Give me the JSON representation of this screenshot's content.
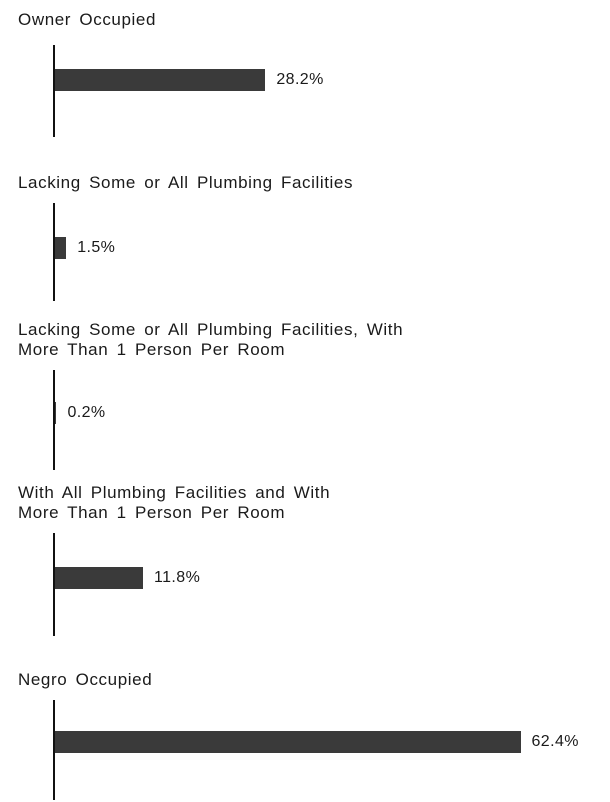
{
  "chart_data": {
    "type": "bar",
    "categories": [
      "Owner Occupied",
      "Lacking Some or All Plumbing Facilities",
      "Lacking Some or All Plumbing Facilities, With\nMore Than 1 Person Per Room",
      "With All Plumbing Facilities and With\nMore Than 1 Person Per Room",
      "Negro Occupied"
    ],
    "values": [
      28.2,
      1.5,
      0.2,
      11.8,
      62.4
    ],
    "value_labels": [
      "28.2%",
      "1.5%",
      "0.2%",
      "11.8%",
      "62.4%"
    ],
    "color": "#3a3a3a"
  }
}
